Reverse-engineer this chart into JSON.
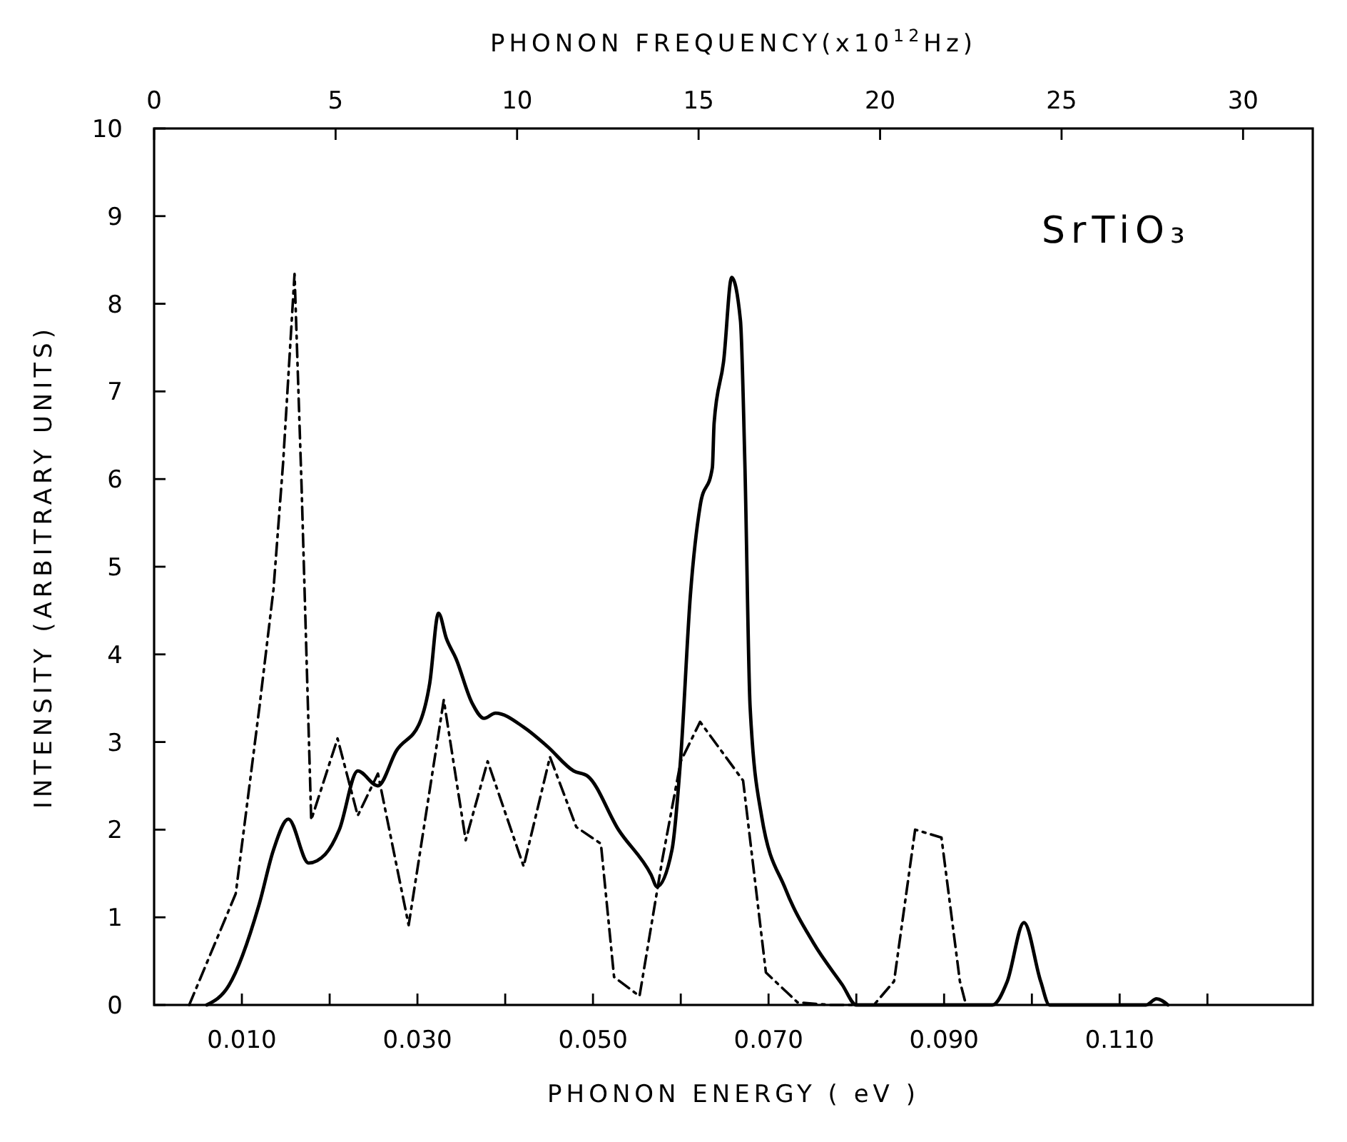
{
  "chart_data": {
    "type": "line",
    "xlabel": "PHONON ENERGY ( eV )",
    "x2label": "PHONON FREQUENCY(x10$^{12}$Hz)",
    "ylabel": "INTENSITY (ARBITRARY UNITS)",
    "annotations": [
      "SrTiO₃"
    ],
    "xlim": [
      0,
      0.132
    ],
    "xticks": [
      {
        "value": 0.01,
        "label": "0.010"
      },
      {
        "value": 0.02,
        "label": null
      },
      {
        "value": 0.03,
        "label": "0.030"
      },
      {
        "value": 0.04,
        "label": null
      },
      {
        "value": 0.05,
        "label": "0.050"
      },
      {
        "value": 0.06,
        "label": null
      },
      {
        "value": 0.07,
        "label": "0.070"
      },
      {
        "value": 0.08,
        "label": null
      },
      {
        "value": 0.09,
        "label": "0.090"
      },
      {
        "value": 0.1,
        "label": null
      },
      {
        "value": 0.11,
        "label": "0.110"
      },
      {
        "value": 0.12,
        "label": null
      }
    ],
    "x2lim": [
      0,
      31.92
    ],
    "x2ticks": [
      0,
      5,
      10,
      15,
      20,
      25,
      30
    ],
    "ylim": [
      0,
      10
    ],
    "yticks": [
      0,
      1,
      2,
      3,
      4,
      5,
      6,
      7,
      8,
      9,
      10
    ],
    "series": [
      {
        "color": "#000000",
        "line_style": "solid",
        "x": [
          0.006,
          0.0085,
          0.012,
          0.0136,
          0.0153,
          0.0176,
          0.0195,
          0.0211,
          0.0232,
          0.0255,
          0.0276,
          0.0303,
          0.0314,
          0.0324,
          0.0333,
          0.0344,
          0.0362,
          0.0376,
          0.0389,
          0.0421,
          0.0448,
          0.0478,
          0.0494,
          0.0529,
          0.0566,
          0.0573,
          0.059,
          0.06,
          0.0611,
          0.0622,
          0.0636,
          0.0638,
          0.0649,
          0.0658,
          0.0668,
          0.0673,
          0.0679,
          0.0692,
          0.0719,
          0.0751,
          0.0784,
          0.08,
          0.0955,
          0.0972,
          0.0991,
          0.101,
          0.102,
          0.113,
          0.1142,
          0.1155
        ],
        "values": [
          0,
          0.22,
          1.16,
          1.77,
          2.12,
          1.62,
          1.72,
          2.0,
          2.67,
          2.5,
          2.9,
          3.23,
          3.67,
          4.47,
          4.18,
          3.95,
          3.45,
          3.27,
          3.33,
          3.17,
          2.95,
          2.67,
          2.61,
          2.0,
          1.49,
          1.35,
          1.77,
          2.83,
          4.68,
          5.69,
          6.13,
          6.64,
          7.36,
          8.3,
          7.81,
          6.19,
          3.4,
          2.16,
          1.33,
          0.71,
          0.23,
          0,
          0,
          0.27,
          0.94,
          0.27,
          0,
          0,
          0.07,
          0
        ]
      },
      {
        "color": "#000000",
        "line_style": "dashdot",
        "x": [
          0.004,
          0.0093,
          0.012,
          0.0136,
          0.0147,
          0.016,
          0.0168,
          0.0179,
          0.0209,
          0.0232,
          0.0255,
          0.029,
          0.033,
          0.0355,
          0.038,
          0.0421,
          0.0451,
          0.0481,
          0.0509,
          0.0524,
          0.0553,
          0.0579,
          0.06,
          0.0622,
          0.0671,
          0.0697,
          0.0733,
          0.077,
          0.082,
          0.0843,
          0.0867,
          0.0897,
          0.0918,
          0.0925
        ],
        "values": [
          0,
          1.27,
          3.4,
          4.74,
          6.19,
          8.34,
          5.92,
          2.11,
          3.04,
          2.16,
          2.64,
          0.91,
          3.48,
          1.88,
          2.78,
          1.58,
          2.83,
          2.03,
          1.84,
          0.32,
          0.1,
          1.66,
          2.78,
          3.23,
          2.56,
          0.37,
          0.03,
          0,
          0,
          0.27,
          2.0,
          1.91,
          0.27,
          0
        ]
      }
    ]
  }
}
